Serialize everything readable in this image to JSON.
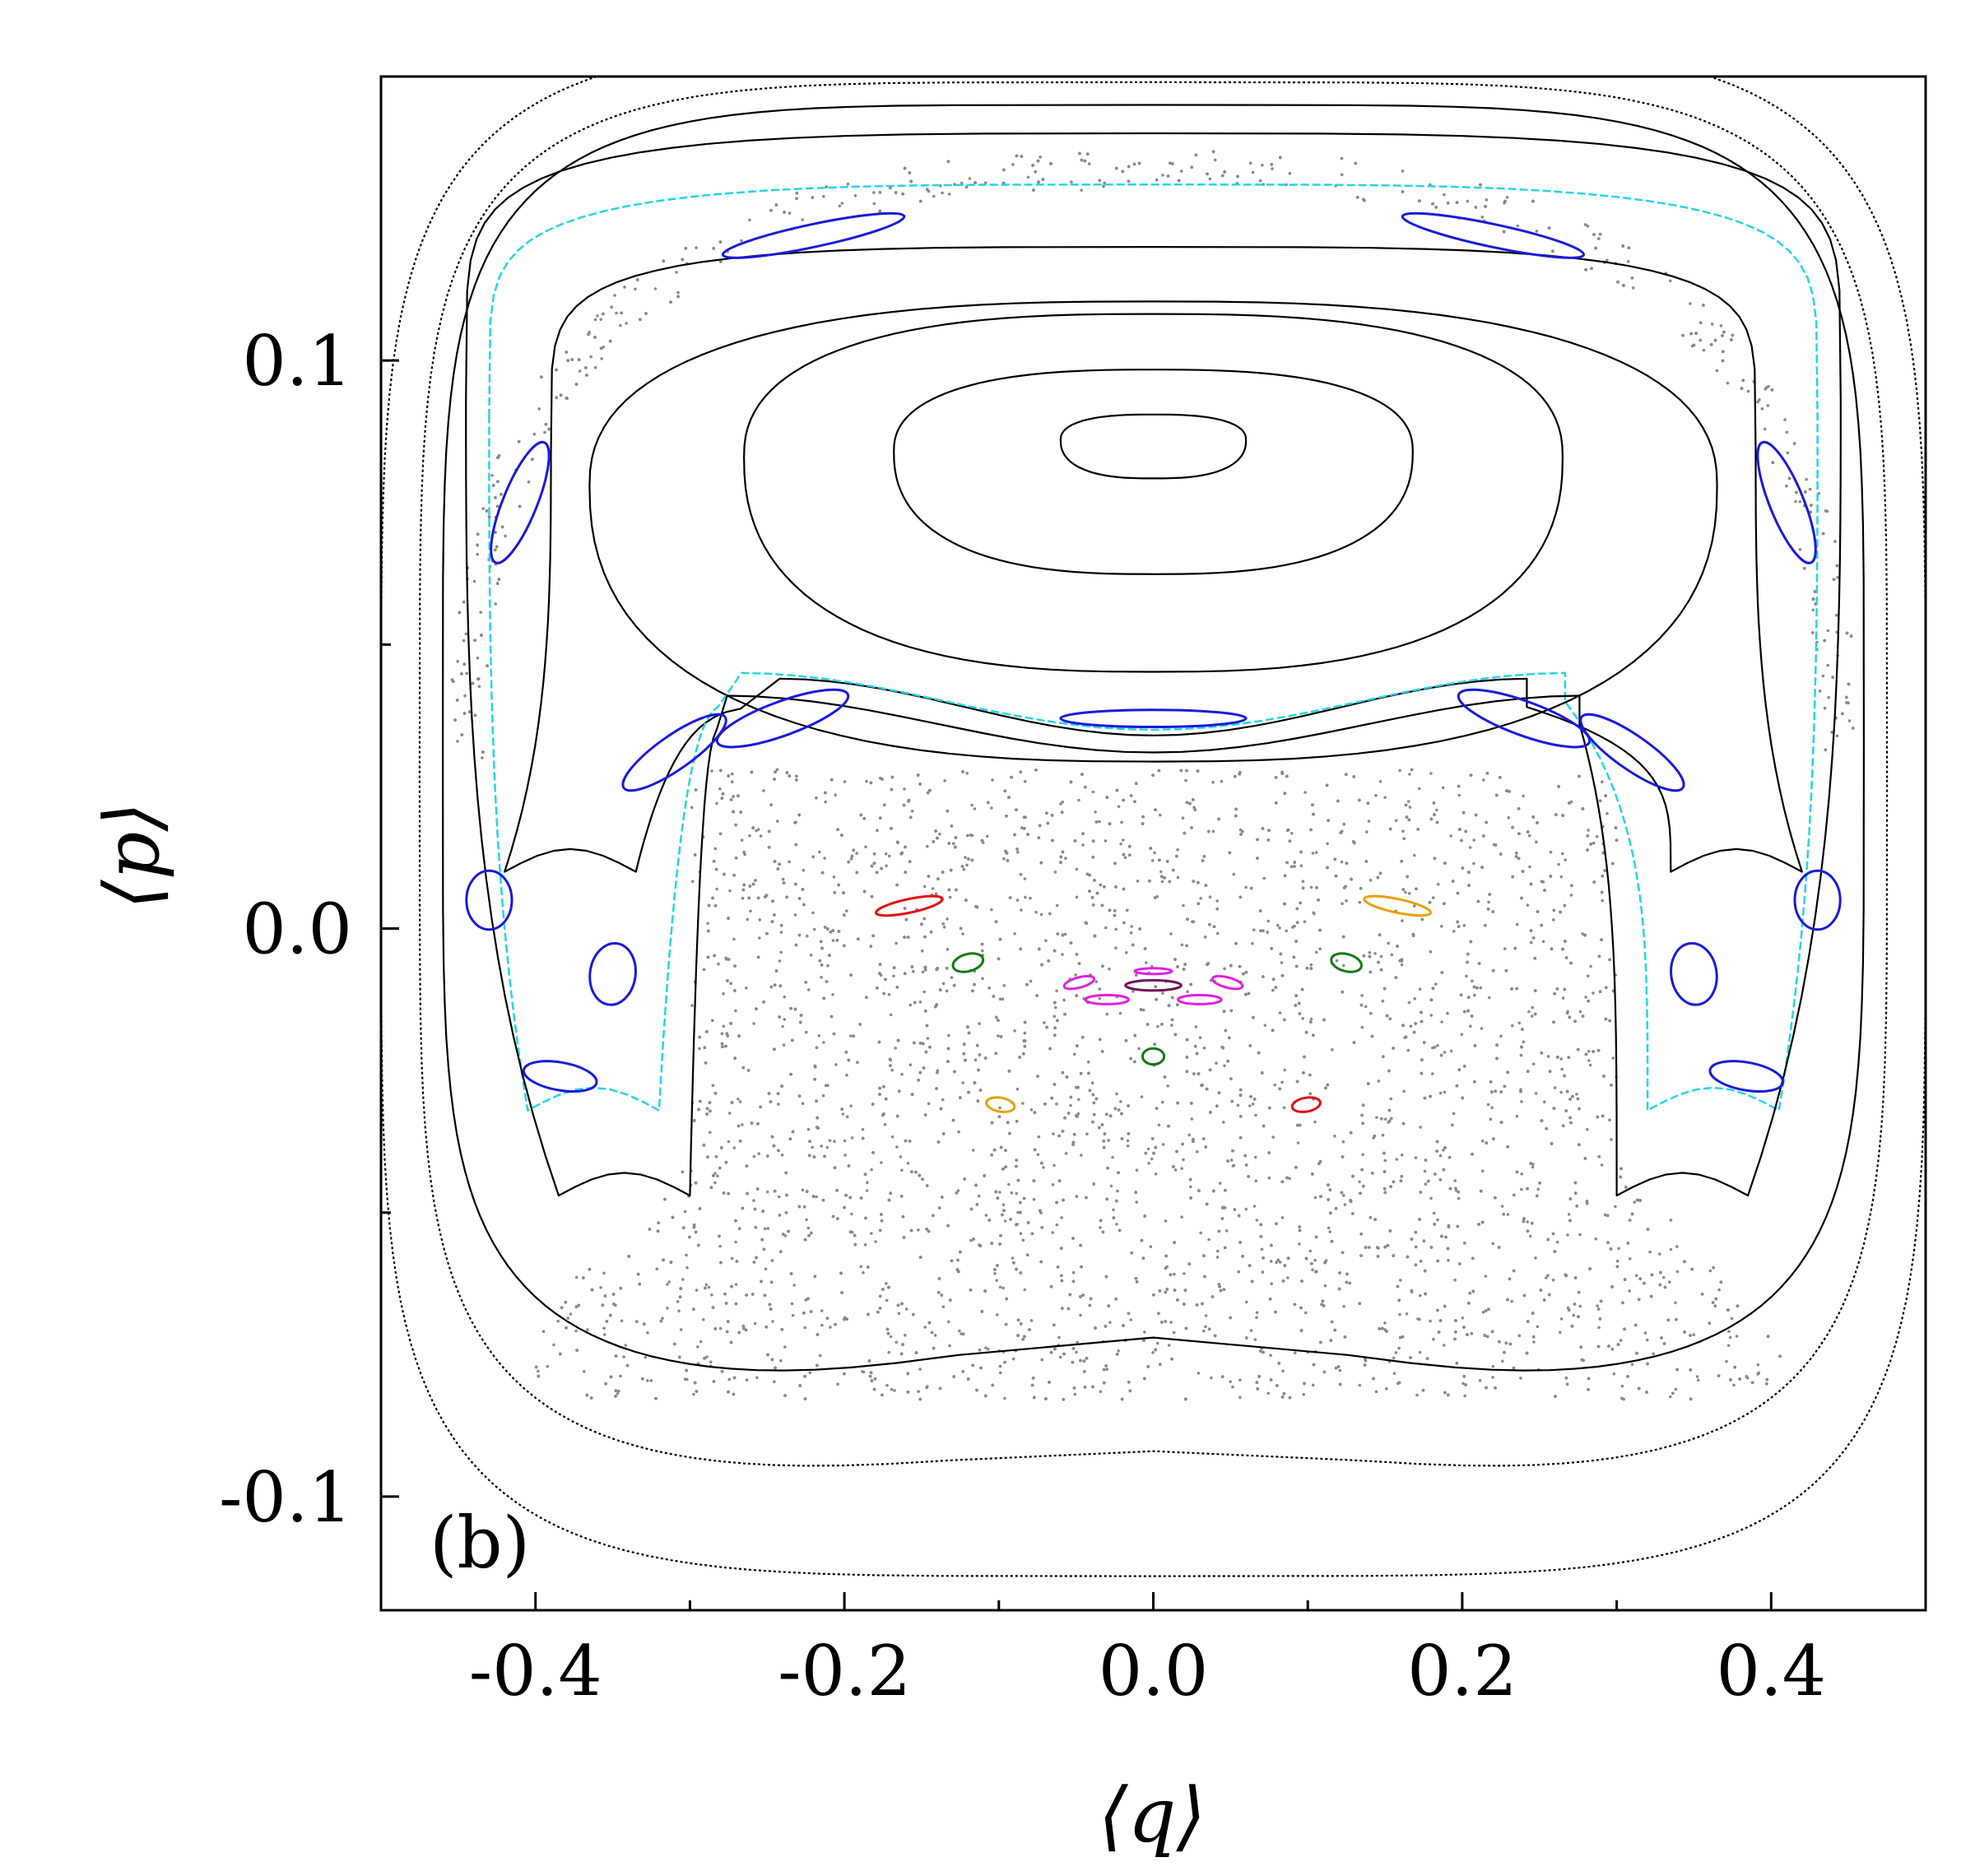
{
  "chart_data": {
    "type": "scatter",
    "panel_label": "(b)",
    "xlabel": "⟨q⟩",
    "ylabel": "⟨p⟩",
    "xlim": [
      -0.5,
      0.5
    ],
    "ylim": [
      -0.12,
      0.15
    ],
    "x_ticks": [
      {
        "value": -0.4,
        "label": "-0.4"
      },
      {
        "value": -0.2,
        "label": "-0.2"
      },
      {
        "value": 0.0,
        "label": "0.0"
      },
      {
        "value": 0.2,
        "label": "0.2"
      },
      {
        "value": 0.4,
        "label": "0.4"
      }
    ],
    "x_minor_ticks": [
      -0.3,
      -0.1,
      0.1,
      0.3
    ],
    "y_ticks": [
      {
        "value": 0.1,
        "label": "0.1"
      },
      {
        "value": 0.0,
        "label": "0.0"
      },
      {
        "value": -0.1,
        "label": "-0.1"
      }
    ],
    "y_minor_ticks": [
      0.05,
      -0.05
    ],
    "grid": false,
    "colors": {
      "regular_orbit": "#000000",
      "chaotic_sea": "#8a8a8a",
      "island_chain_blue": "#1a1adb",
      "separatrix_cyan": "#22d6e6",
      "red": "#e01010",
      "orange": "#e8a010",
      "green": "#107a10",
      "magenta": "#e020e0",
      "purple": "#701060"
    },
    "series": [
      {
        "kind": "regular-orbit",
        "color": "regular_orbit",
        "shape": "loop",
        "center": [
          0.0,
          0.086
        ],
        "half_width": 0.06,
        "half_height": 0.005
      },
      {
        "kind": "regular-orbit",
        "color": "regular_orbit",
        "shape": "loop",
        "center": [
          0.0,
          0.084
        ],
        "half_width": 0.168,
        "half_height": 0.016
      },
      {
        "kind": "regular-orbit",
        "color": "regular_orbit",
        "shape": "loop",
        "center": [
          0.0,
          0.083
        ],
        "half_width": 0.265,
        "half_height": 0.028
      },
      {
        "kind": "regular-orbit",
        "color": "regular_orbit",
        "shape": "loop",
        "center": [
          0.0,
          0.078
        ],
        "half_width": 0.365,
        "half_height": 0.036
      },
      {
        "kind": "regular-orbit",
        "color": "regular_orbit",
        "shape": "horseshoe",
        "x_half": 0.39,
        "y_top": 0.12,
        "y_bottom": 0.039,
        "tail_y": 0.01,
        "tail_x": 0.4
      },
      {
        "kind": "separatrix",
        "color": "separatrix_cyan",
        "shape": "horseshoe",
        "x_half": 0.43,
        "y_top": 0.131,
        "y_bottom": 0.04,
        "tail_y": -0.032,
        "tail_x": 0.385
      },
      {
        "kind": "regular-orbit",
        "color": "regular_orbit",
        "shape": "horseshoe",
        "x_half": 0.445,
        "y_top": 0.14,
        "y_bottom": 0.036,
        "tail_y": -0.047,
        "tail_x": 0.365
      },
      {
        "kind": "regular-orbit",
        "color": "regular_orbit",
        "shape": "outer",
        "x_half": 0.46,
        "y_top": 0.141,
        "y_bottom": -0.084,
        "dip": 0.008
      },
      {
        "kind": "regular-orbit",
        "color": "regular_orbit",
        "shape": "outer",
        "x_half": 0.475,
        "y_top": 0.145,
        "y_bottom": -0.1,
        "dip": 0.004
      },
      {
        "kind": "regular-orbit",
        "color": "regular_orbit",
        "shape": "outer",
        "x_half": 0.5,
        "y_top": 0.152,
        "y_bottom": -0.118,
        "dip": 0.0
      }
    ],
    "islands": [
      {
        "color": "island_chain_blue",
        "center": [
          0.0,
          0.037
        ],
        "rx": 0.06,
        "ry": 0.0015,
        "angle": 0
      },
      {
        "color": "island_chain_blue",
        "center": [
          -0.24,
          0.037
        ],
        "rx": 0.045,
        "ry": 0.003,
        "angle": 20
      },
      {
        "color": "island_chain_blue",
        "center": [
          0.24,
          0.037
        ],
        "rx": 0.045,
        "ry": 0.003,
        "angle": -20
      },
      {
        "color": "island_chain_blue",
        "center": [
          -0.31,
          0.031
        ],
        "rx": 0.04,
        "ry": 0.003,
        "angle": 35
      },
      {
        "color": "island_chain_blue",
        "center": [
          0.31,
          0.031
        ],
        "rx": 0.04,
        "ry": 0.003,
        "angle": -35
      },
      {
        "color": "island_chain_blue",
        "center": [
          -0.22,
          0.122
        ],
        "rx": 0.06,
        "ry": 0.002,
        "angle": 12
      },
      {
        "color": "island_chain_blue",
        "center": [
          0.22,
          0.122
        ],
        "rx": 0.06,
        "ry": 0.002,
        "angle": -12
      },
      {
        "color": "island_chain_blue",
        "center": [
          -0.41,
          0.075
        ],
        "rx": 0.042,
        "ry": 0.003,
        "angle": 68
      },
      {
        "color": "island_chain_blue",
        "center": [
          0.41,
          0.075
        ],
        "rx": 0.042,
        "ry": 0.003,
        "angle": -68
      },
      {
        "color": "island_chain_blue",
        "center": [
          -0.43,
          0.005
        ],
        "rx": 0.019,
        "ry": 0.004,
        "angle": 90
      },
      {
        "color": "island_chain_blue",
        "center": [
          0.43,
          0.005
        ],
        "rx": 0.019,
        "ry": 0.004,
        "angle": 90
      },
      {
        "color": "island_chain_blue",
        "center": [
          -0.35,
          -0.008
        ],
        "rx": 0.02,
        "ry": 0.004,
        "angle": 82
      },
      {
        "color": "island_chain_blue",
        "center": [
          0.35,
          -0.008
        ],
        "rx": 0.02,
        "ry": 0.004,
        "angle": -82
      },
      {
        "color": "island_chain_blue",
        "center": [
          -0.384,
          -0.026
        ],
        "rx": 0.009,
        "ry": 0.0065,
        "angle": 80
      },
      {
        "color": "island_chain_blue",
        "center": [
          0.384,
          -0.026
        ],
        "rx": 0.009,
        "ry": 0.0065,
        "angle": 80
      },
      {
        "color": "red",
        "center": [
          -0.158,
          0.004
        ],
        "rx": 0.022,
        "ry": 0.0012,
        "angle": 12
      },
      {
        "color": "orange",
        "center": [
          0.158,
          0.004
        ],
        "rx": 0.022,
        "ry": 0.0012,
        "angle": -12
      },
      {
        "color": "green",
        "center": [
          -0.12,
          -0.006
        ],
        "rx": 0.01,
        "ry": 0.0015,
        "angle": 15
      },
      {
        "color": "green",
        "center": [
          0.125,
          -0.006
        ],
        "rx": 0.01,
        "ry": 0.0015,
        "angle": -15
      },
      {
        "color": "green",
        "center": [
          0.0,
          -0.0225
        ],
        "rx": 0.007,
        "ry": 0.0014,
        "angle": 0
      },
      {
        "color": "orange",
        "center": [
          -0.099,
          -0.031
        ],
        "rx": 0.0045,
        "ry": 0.0025,
        "angle": 80
      },
      {
        "color": "red",
        "center": [
          0.099,
          -0.031
        ],
        "rx": 0.0045,
        "ry": 0.0025,
        "angle": -80
      },
      {
        "color": "purple",
        "center": [
          0.0,
          -0.01
        ],
        "rx": 0.018,
        "ry": 0.0009,
        "angle": 0
      },
      {
        "color": "magenta",
        "center": [
          0.0,
          -0.0075
        ],
        "rx": 0.012,
        "ry": 0.0005,
        "angle": 0
      },
      {
        "color": "magenta",
        "center": [
          -0.048,
          -0.0095
        ],
        "rx": 0.01,
        "ry": 0.0009,
        "angle": 15
      },
      {
        "color": "magenta",
        "center": [
          0.048,
          -0.0095
        ],
        "rx": 0.01,
        "ry": 0.0009,
        "angle": -15
      },
      {
        "color": "magenta",
        "center": [
          -0.03,
          -0.0125
        ],
        "rx": 0.014,
        "ry": 0.0008,
        "angle": 0
      },
      {
        "color": "magenta",
        "center": [
          0.03,
          -0.0125
        ],
        "rx": 0.014,
        "ry": 0.0008,
        "angle": 0
      }
    ]
  }
}
